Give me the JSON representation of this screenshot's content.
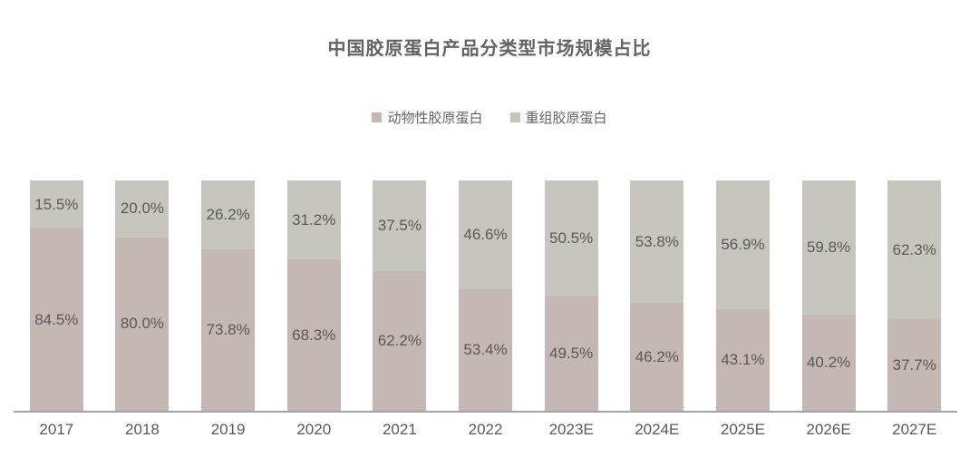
{
  "title": "中国胶原蛋白产品分类型市场规模占比",
  "legend": [
    {
      "label": "动物性胶原蛋白",
      "color": "#c5b7b4"
    },
    {
      "label": "重组胶原蛋白",
      "color": "#c6c6bf"
    }
  ],
  "colors": {
    "animal": "#c5b7b4",
    "recombinant": "#c6c6bf",
    "label_text": "#595959",
    "title_text": "#636363",
    "axis_line": "#a3a3ab"
  },
  "chart_data": {
    "type": "bar",
    "stacked": true,
    "percent_stacked": true,
    "title": "中国胶原蛋白产品分类型市场规模占比",
    "categories": [
      "2017",
      "2018",
      "2019",
      "2020",
      "2021",
      "2022",
      "2023E",
      "2024E",
      "2025E",
      "2026E",
      "2027E"
    ],
    "series": [
      {
        "name": "动物性胶原蛋白",
        "values": [
          84.5,
          80.0,
          73.8,
          68.3,
          62.2,
          53.4,
          49.5,
          46.2,
          43.1,
          40.2,
          37.7
        ]
      },
      {
        "name": "重组胶原蛋白",
        "values": [
          15.5,
          20.0,
          26.2,
          31.2,
          37.5,
          46.6,
          50.5,
          53.8,
          56.9,
          59.8,
          62.3
        ]
      }
    ],
    "value_label_format": "one-decimal-percent",
    "xlabel": "",
    "ylabel": "",
    "ylim": [
      0,
      100
    ],
    "grid": false,
    "legend_position": "top"
  }
}
